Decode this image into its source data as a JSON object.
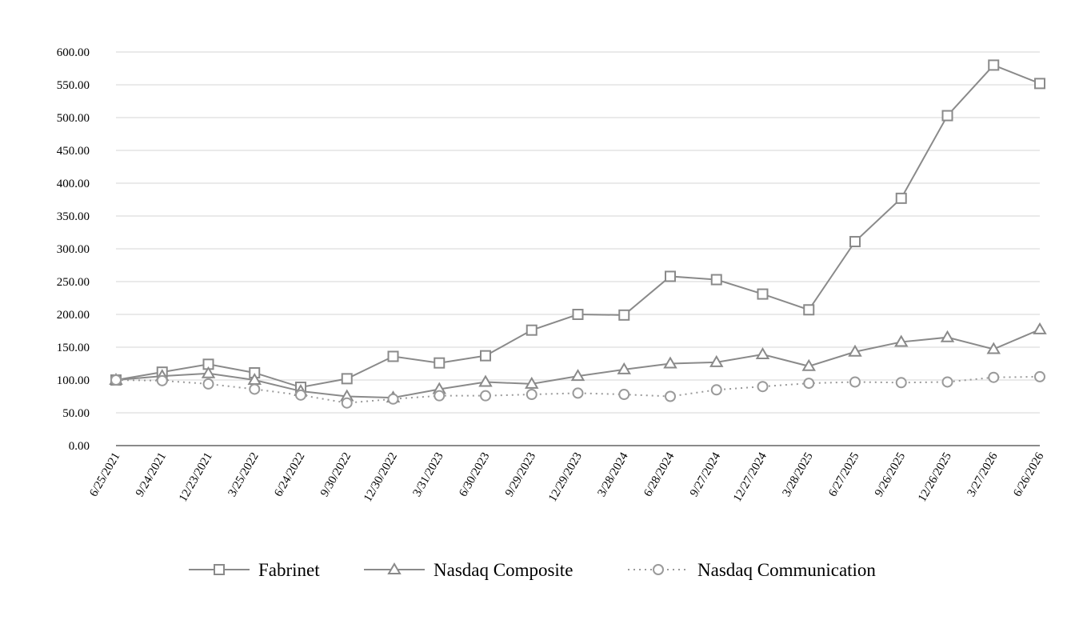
{
  "chart_data": {
    "type": "line",
    "x": [
      "6/25/2021",
      "9/24/2021",
      "12/23/2021",
      "3/25/2022",
      "6/24/2022",
      "9/30/2022",
      "12/30/2022",
      "3/31/2023",
      "6/30/2023",
      "9/29/2023",
      "12/29/2023",
      "3/28/2024",
      "6/28/2024",
      "9/27/2024",
      "12/27/2024",
      "3/28/2025",
      "6/27/2025",
      "9/26/2025",
      "12/26/2025",
      "3/27/2026",
      "6/26/2026"
    ],
    "y_ticks": [
      "0.00",
      "50.00",
      "100.00",
      "150.00",
      "200.00",
      "250.00",
      "300.00",
      "350.00",
      "400.00",
      "450.00",
      "500.00",
      "550.00",
      "600.00"
    ],
    "ylim": [
      0,
      600
    ],
    "grid": "horizontal",
    "legend_position": "bottom",
    "series": [
      {
        "name": "Fabrinet",
        "marker": "square",
        "dash": "solid",
        "color": "#8a8a8a",
        "values": [
          100,
          112,
          124,
          111,
          89,
          102,
          136,
          126,
          137,
          176,
          200,
          199,
          258,
          253,
          231,
          207,
          311,
          377,
          503,
          580,
          552
        ]
      },
      {
        "name": "Nasdaq Composite",
        "marker": "triangle",
        "dash": "solid",
        "color": "#8a8a8a",
        "values": [
          100,
          106,
          110,
          100,
          83,
          75,
          73,
          86,
          97,
          94,
          106,
          116,
          125,
          127,
          139,
          121,
          143,
          158,
          165,
          147,
          177
        ]
      },
      {
        "name": "Nasdaq Communication",
        "marker": "circle",
        "dash": "dotted",
        "color": "#9a9a9a",
        "values": [
          100,
          99,
          94,
          86,
          77,
          65,
          71,
          76,
          76,
          78,
          80,
          78,
          75,
          85,
          90,
          95,
          97,
          96,
          97,
          104,
          105
        ]
      }
    ]
  }
}
